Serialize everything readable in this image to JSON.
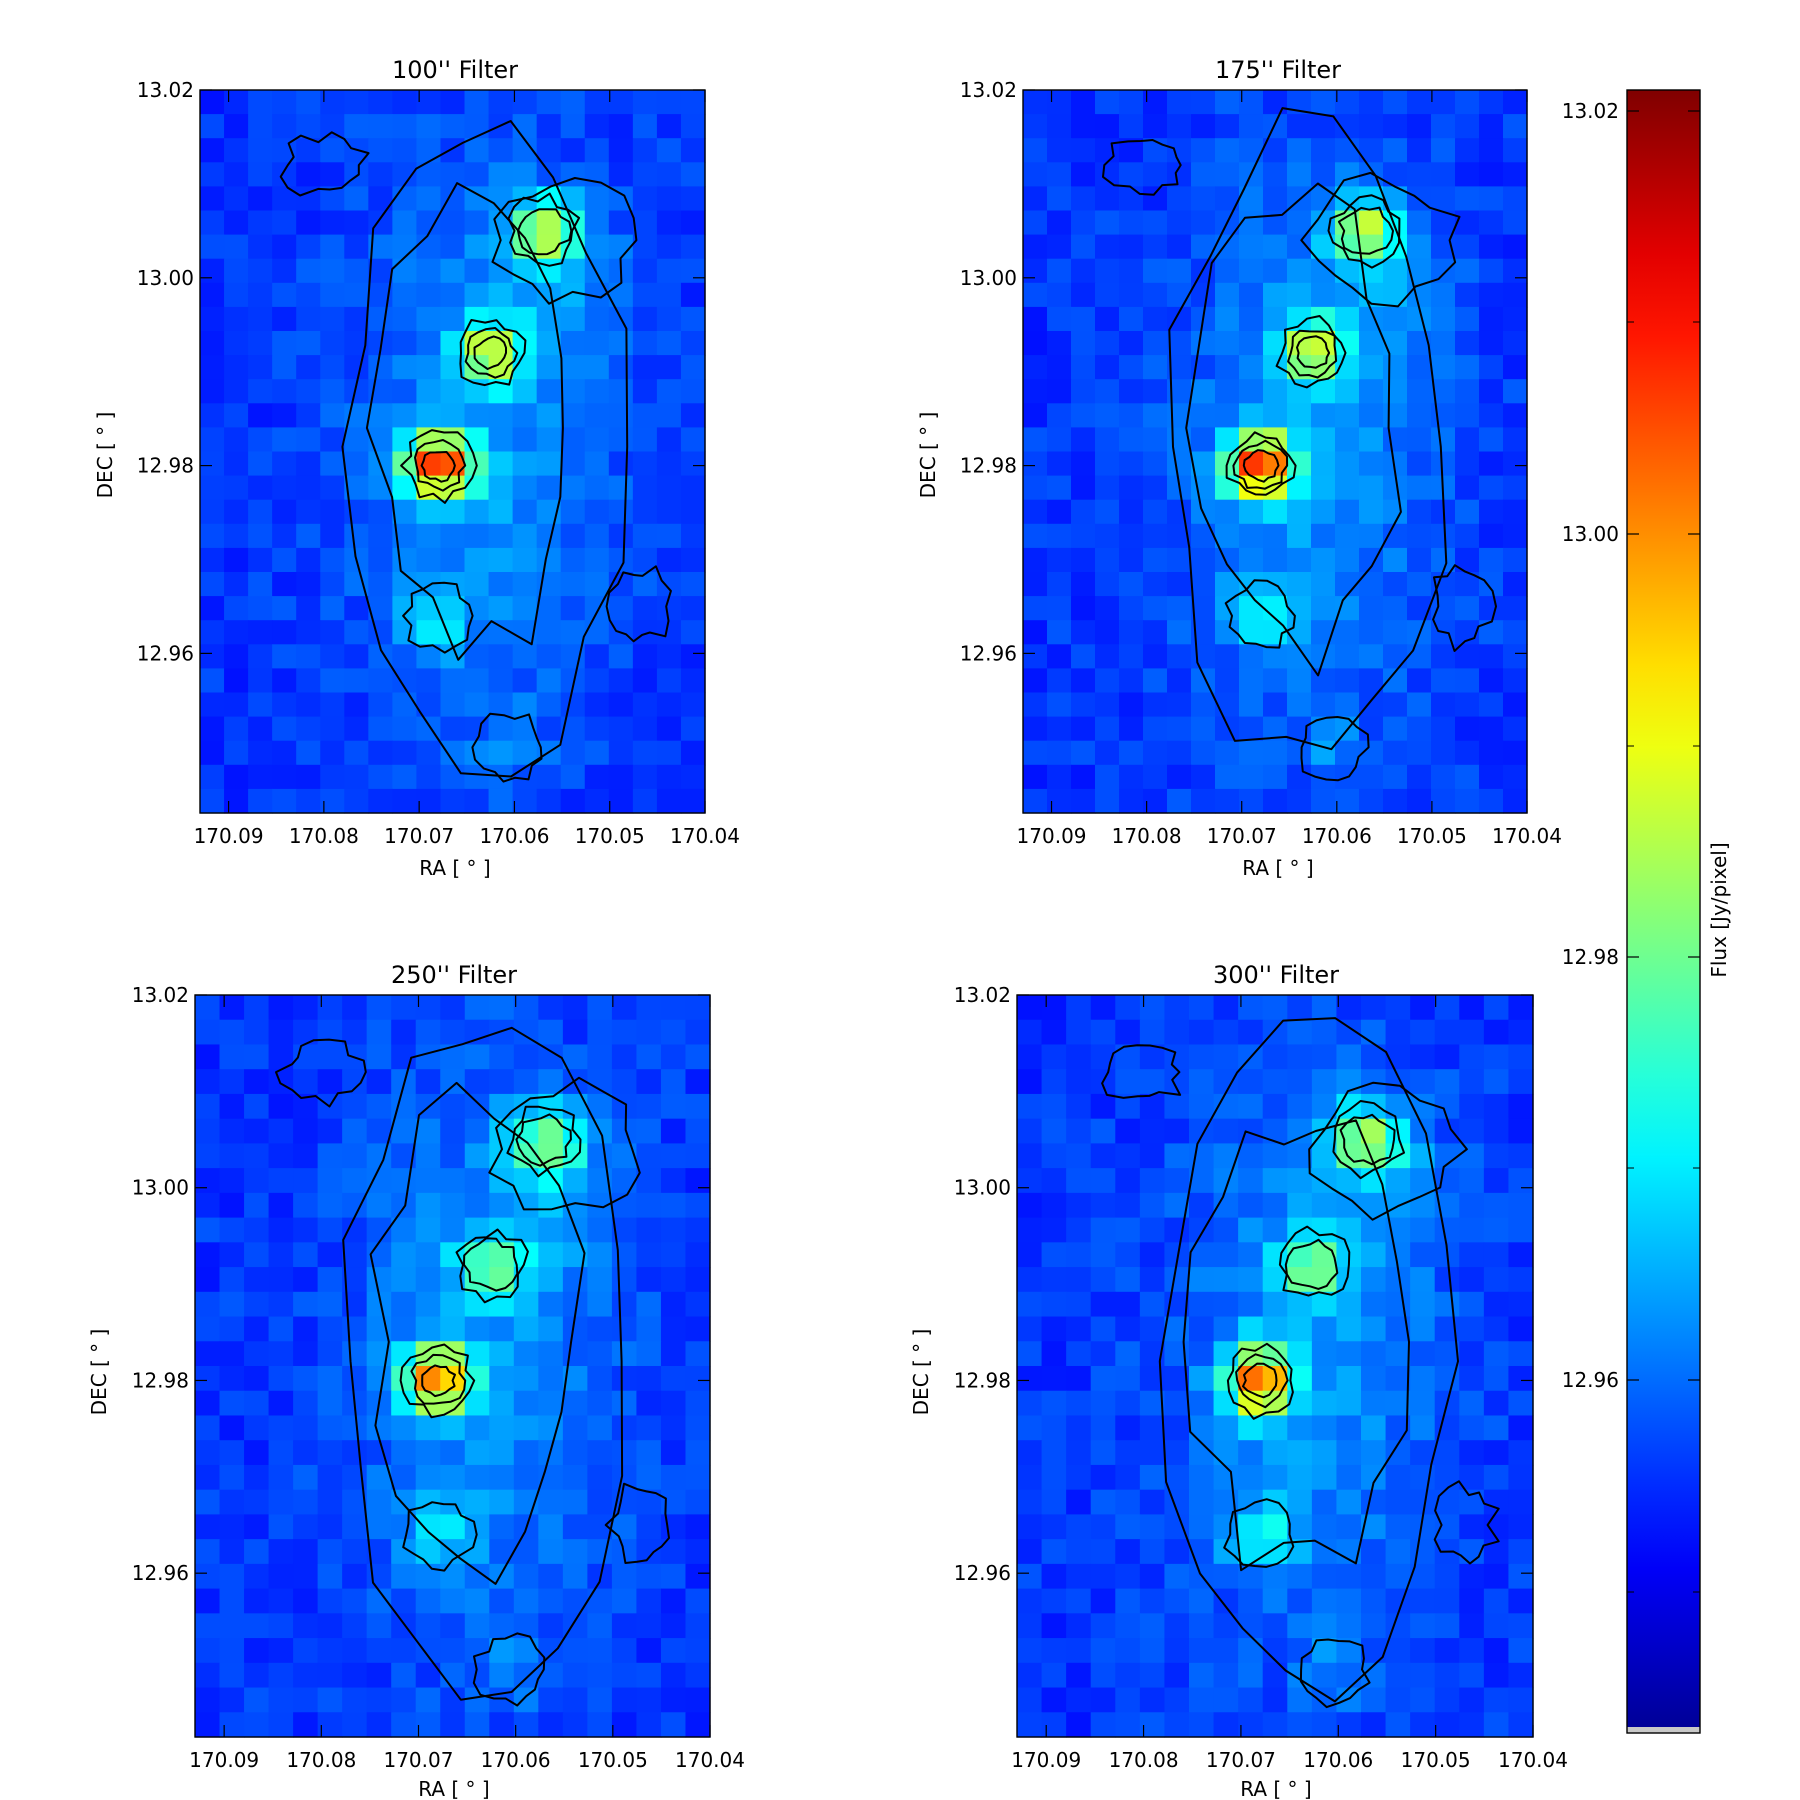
{
  "chart_data": [
    {
      "type": "heatmap",
      "title": "100'' Filter",
      "xlabel": "RA [ ° ]",
      "ylabel": "DEC [ ° ]",
      "xlim": [
        170.093,
        170.04
      ],
      "ylim": [
        12.943,
        13.02
      ],
      "xticks": [
        "170.09",
        "170.08",
        "170.07",
        "170.06",
        "170.05",
        "170.04"
      ],
      "yticks": [
        "12.96",
        "12.98",
        "13.00",
        "13.02"
      ],
      "sources": [
        {
          "ra": 170.068,
          "dec": 12.98,
          "level": 1.0
        },
        {
          "ra": 170.0625,
          "dec": 12.992,
          "level": 0.58
        },
        {
          "ra": 170.057,
          "dec": 13.005,
          "level": 0.5
        },
        {
          "ra": 170.068,
          "dec": 12.964,
          "level": 0.22
        },
        {
          "ra": 170.0605,
          "dec": 12.95,
          "level": 0.1
        }
      ]
    },
    {
      "type": "heatmap",
      "title": "175'' Filter",
      "xlabel": "RA [ ° ]",
      "ylabel": "DEC [ ° ]",
      "xlim": [
        170.093,
        170.04
      ],
      "ylim": [
        12.943,
        13.02
      ],
      "xticks": [
        "170.09",
        "170.08",
        "170.07",
        "170.06",
        "170.05",
        "170.04"
      ],
      "yticks": [
        "12.96",
        "12.98",
        "13.00",
        "13.02"
      ],
      "sources": [
        {
          "ra": 170.068,
          "dec": 12.98,
          "level": 1.0
        },
        {
          "ra": 170.0625,
          "dec": 12.992,
          "level": 0.58
        },
        {
          "ra": 170.057,
          "dec": 13.005,
          "level": 0.5
        },
        {
          "ra": 170.068,
          "dec": 12.964,
          "level": 0.22
        },
        {
          "ra": 170.0605,
          "dec": 12.95,
          "level": 0.1
        }
      ]
    },
    {
      "type": "heatmap",
      "title": "250'' Filter",
      "xlabel": "RA [ ° ]",
      "ylabel": "DEC [ ° ]",
      "xlim": [
        170.093,
        170.04
      ],
      "ylim": [
        12.943,
        13.02
      ],
      "xticks": [
        "170.09",
        "170.08",
        "170.07",
        "170.06",
        "170.05",
        "170.04"
      ],
      "yticks": [
        "12.96",
        "12.98",
        "13.00",
        "13.02"
      ],
      "sources": [
        {
          "ra": 170.068,
          "dec": 12.98,
          "level": 0.85
        },
        {
          "ra": 170.0625,
          "dec": 12.992,
          "level": 0.4
        },
        {
          "ra": 170.057,
          "dec": 13.005,
          "level": 0.45
        },
        {
          "ra": 170.068,
          "dec": 12.964,
          "level": 0.2
        },
        {
          "ra": 170.0605,
          "dec": 12.95,
          "level": 0.1
        }
      ]
    },
    {
      "type": "heatmap",
      "title": "300'' Filter",
      "xlabel": "RA [ ° ]",
      "ylabel": "DEC [ ° ]",
      "xlim": [
        170.093,
        170.04
      ],
      "ylim": [
        12.943,
        13.02
      ],
      "xticks": [
        "170.09",
        "170.08",
        "170.07",
        "170.06",
        "170.05",
        "170.04"
      ],
      "yticks": [
        "12.96",
        "12.98",
        "13.00",
        "13.02"
      ],
      "sources": [
        {
          "ra": 170.068,
          "dec": 12.98,
          "level": 0.88
        },
        {
          "ra": 170.0625,
          "dec": 12.992,
          "level": 0.45
        },
        {
          "ra": 170.057,
          "dec": 13.005,
          "level": 0.5
        },
        {
          "ra": 170.068,
          "dec": 12.964,
          "level": 0.25
        },
        {
          "ra": 170.0605,
          "dec": 12.95,
          "level": 0.1
        }
      ]
    }
  ],
  "colorbar": {
    "label": "Flux [Jy/pixel]",
    "ticks": [
      "13.02",
      "13.00",
      "12.98",
      "12.96"
    ],
    "colormap": "jet"
  }
}
